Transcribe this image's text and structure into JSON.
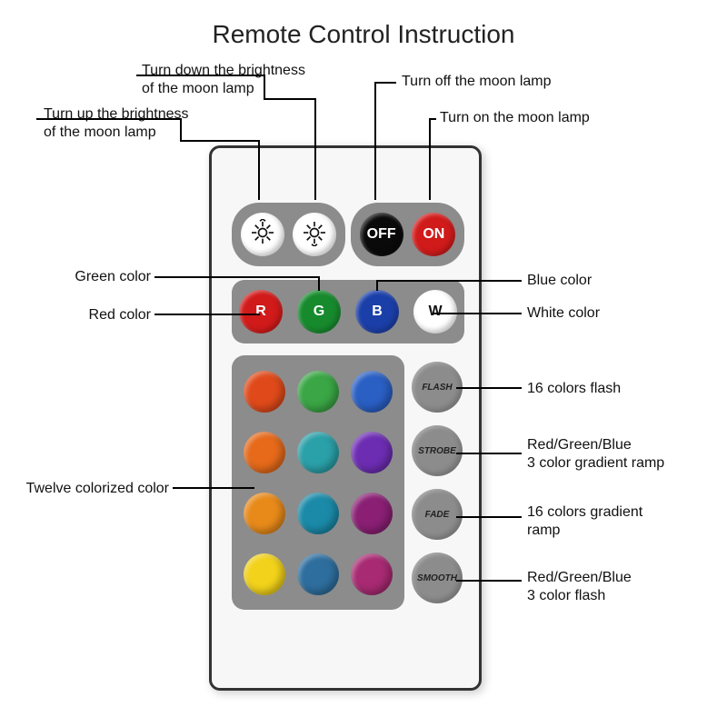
{
  "title": "Remote Control Instruction",
  "remote": {
    "body_bg": "#f7f7f7",
    "body_border": "#333333",
    "panel_bg": "#8c8c8c"
  },
  "top_row": {
    "brightness_up": {
      "bg": "#ffffff",
      "icon": "sun-up",
      "icon_color": "#111111"
    },
    "brightness_down": {
      "bg": "#ffffff",
      "icon": "sun-down",
      "icon_color": "#111111"
    },
    "off": {
      "bg": "#0a0a0a",
      "label": "OFF",
      "text_color": "#ffffff"
    },
    "on": {
      "bg": "#d11a1a",
      "label": "ON",
      "text_color": "#ffffff"
    }
  },
  "rgbw": [
    {
      "label": "R",
      "bg": "#d11a1a",
      "text_color": "#ffffff"
    },
    {
      "label": "G",
      "bg": "#178a2d",
      "text_color": "#ffffff"
    },
    {
      "label": "B",
      "bg": "#1b3fa8",
      "text_color": "#ffffff"
    },
    {
      "label": "W",
      "bg": "#ffffff",
      "text_color": "#111111"
    }
  ],
  "colors_grid": [
    "#e04a1a",
    "#3aa645",
    "#2a5fc4",
    "#e66a1a",
    "#2aa0a8",
    "#6d2db3",
    "#e88a1a",
    "#1a8aa8",
    "#8a1f74",
    "#f2d21a",
    "#2e6e9e",
    "#a82a72"
  ],
  "modes": [
    {
      "label": "FLASH"
    },
    {
      "label": "STROBE"
    },
    {
      "label": "FADE"
    },
    {
      "label": "SMOOTH"
    }
  ],
  "callouts": {
    "brightness_up": "Turn up the brightness\nof the moon lamp",
    "brightness_down": "Turn down the brightness\nof the moon lamp",
    "off": "Turn off the moon lamp",
    "on": "Turn on the moon lamp",
    "green": "Green color",
    "red": "Red color",
    "blue": "Blue color",
    "white": "White color",
    "twelve": "Twelve colorized color",
    "flash": "16 colors flash",
    "strobe": "Red/Green/Blue\n3 color gradient ramp",
    "fade": "16 colors gradient\nramp",
    "smooth": "Red/Green/Blue\n3 color flash"
  },
  "typography": {
    "title_fontsize": 28,
    "callout_fontsize": 16
  }
}
